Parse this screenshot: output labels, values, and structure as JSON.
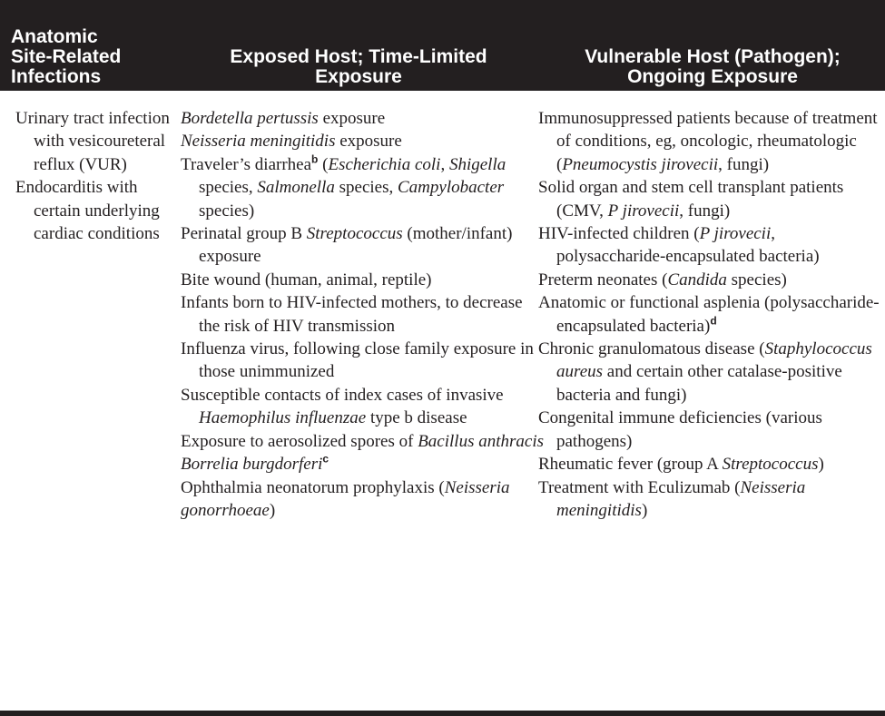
{
  "header": {
    "col1": "Anatomic Site-Related Infections",
    "col1_lines": [
      "Anatomic",
      "Site-Related",
      "Infections"
    ],
    "col2_lines": [
      "Exposed Host; Time-Limited",
      "Exposure"
    ],
    "col3_lines": [
      "Vulnerable Host (Pathogen);",
      "Ongoing Exposure"
    ]
  },
  "col1_items": [
    "Urinary tract infection with vesicoureteral reflux (VUR)",
    "Endocarditis with certain underlying cardiac conditions"
  ],
  "col2_items": [
    [
      {
        "t": "Bordetella pertussis",
        "i": true
      },
      {
        "t": " exposure"
      }
    ],
    [
      {
        "t": "Neisseria meningitidis",
        "i": true
      },
      {
        "t": " exposure"
      }
    ],
    [
      {
        "t": "Traveler’s diarrhea"
      },
      {
        "t": "b",
        "sup": true
      },
      {
        "t": " ("
      },
      {
        "t": "Escherichia coli",
        "i": true
      },
      {
        "t": ", "
      },
      {
        "t": "Shigella",
        "i": true
      },
      {
        "t": " species, "
      },
      {
        "t": "Salmonella",
        "i": true
      },
      {
        "t": " species, "
      },
      {
        "t": "Campylobacter",
        "i": true
      },
      {
        "t": " species)"
      }
    ],
    [
      {
        "t": "Perinatal group B "
      },
      {
        "t": "Streptococcus",
        "i": true
      },
      {
        "t": " (mother/infant) exposure"
      }
    ],
    [
      {
        "t": "Bite wound (human, animal, reptile)"
      }
    ],
    [
      {
        "t": "Infants born to HIV-infected mothers, to decrease the risk of HIV transmission"
      }
    ],
    [
      {
        "t": "Influenza virus, following close family exposure in those unimmunized"
      }
    ],
    [
      {
        "t": "Susceptible contacts of index cases of invasive "
      },
      {
        "t": "Haemophilus influenzae",
        "i": true
      },
      {
        "t": " type b disease"
      }
    ],
    [
      {
        "t": "Exposure to aerosolized spores of "
      },
      {
        "t": "Bacillus anthracis",
        "i": true
      }
    ],
    [
      {
        "t": "Borrelia burgdorferi",
        "i": true
      },
      {
        "t": "c",
        "sup": true
      }
    ],
    [
      {
        "t": "Ophthalmia neonatorum prophylaxis ("
      },
      {
        "t": "Neisseria gonorrhoeae",
        "i": true
      },
      {
        "t": ")"
      }
    ]
  ],
  "col3_items": [
    [
      {
        "t": "Immunosuppressed patients because of treatment of conditions, eg, oncologic, rheumatologic ("
      },
      {
        "t": "Pneumocystis jirovecii",
        "i": true
      },
      {
        "t": ", fungi)"
      }
    ],
    [
      {
        "t": "Solid organ and stem cell transplant patients (CMV, "
      },
      {
        "t": "P jirovecii",
        "i": true
      },
      {
        "t": ", fungi)"
      }
    ],
    [
      {
        "t": "HIV-infected children ("
      },
      {
        "t": "P jirovecii",
        "i": true
      },
      {
        "t": ", polysaccharide-encapsulated bacteria)"
      }
    ],
    [
      {
        "t": "Preterm neonates ("
      },
      {
        "t": "Candida",
        "i": true
      },
      {
        "t": " species)"
      }
    ],
    [
      {
        "t": "Anatomic or functional asplenia (polysaccharide-encapsulated bacteria)"
      },
      {
        "t": "d",
        "sup": true
      }
    ],
    [
      {
        "t": "Chronic granulomatous disease ("
      },
      {
        "t": "Staphylococcus aureus",
        "i": true
      },
      {
        "t": " and certain other catalase-positive bacteria and fungi)"
      }
    ],
    [
      {
        "t": "Congenital immune deficiencies (various pathogens)"
      }
    ],
    [
      {
        "t": "Rheumatic fever (group A "
      },
      {
        "t": "Streptococcus",
        "i": true
      },
      {
        "t": ")"
      }
    ],
    [
      {
        "t": "Treatment with Eculizumab ("
      },
      {
        "t": "Neisseria meningitidis",
        "i": true
      },
      {
        "t": ")"
      }
    ]
  ]
}
